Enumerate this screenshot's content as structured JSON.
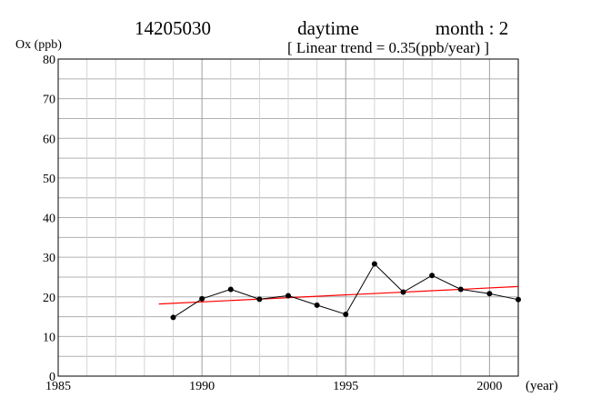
{
  "header": {
    "station": "14205030",
    "period": "daytime",
    "month": "month : 2",
    "trend_note": "[ Linear trend = 0.35(ppb/year) ]"
  },
  "chart_data": {
    "type": "line",
    "ylabel": "Ox (ppb)",
    "xlabel": "(year)",
    "xlim": [
      1985,
      2001
    ],
    "ylim": [
      0,
      80
    ],
    "x_ticks": [
      "1985",
      "1990",
      "1995",
      "2000"
    ],
    "y_ticks": [
      "0",
      "10",
      "20",
      "30",
      "40",
      "50",
      "60",
      "70",
      "80"
    ],
    "grid": true,
    "series": [
      {
        "x": [
          1989,
          1990,
          1991,
          1992,
          1993,
          1994,
          1995,
          1996,
          1997,
          1998,
          1999,
          2000,
          2001
        ],
        "y": [
          14.8,
          19.5,
          21.9,
          19.4,
          20.3,
          17.9,
          15.6,
          28.3,
          21.2,
          25.4,
          21.9,
          20.8,
          19.3
        ],
        "color": "#000000",
        "markers": true
      }
    ],
    "trend": {
      "x": [
        1988.5,
        2001
      ],
      "y": [
        18.2,
        22.6
      ],
      "color": "#ff0000",
      "slope": 0.35
    }
  }
}
